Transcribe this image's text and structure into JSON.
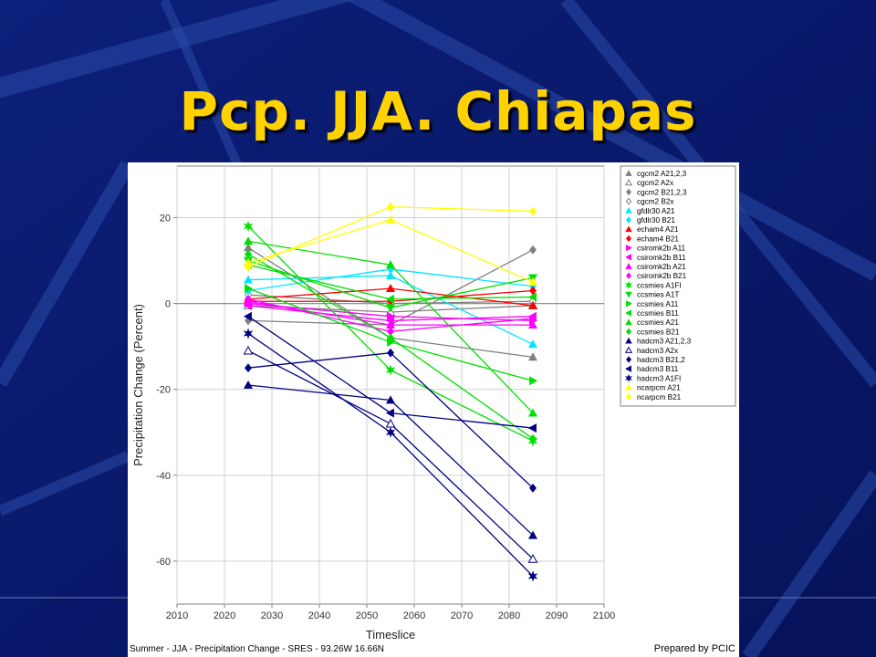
{
  "slide": {
    "title": "Pcp. JJA. Chiapas"
  },
  "figure": {
    "caption": "Summer - JJA - Precipitation Change - SRES - 93.26W 16.66N",
    "credit": "Prepared by PCIC"
  },
  "chart_data": {
    "type": "line",
    "xlabel": "Timeslice",
    "ylabel": "Precipitation Change (Percent)",
    "xlim": [
      2010,
      2100
    ],
    "ylim": [
      -70,
      32
    ],
    "xticks": [
      2010,
      2020,
      2030,
      2040,
      2050,
      2060,
      2070,
      2080,
      2090,
      2100
    ],
    "yticks": [
      20,
      0,
      -20,
      -40,
      -60
    ],
    "zero_line": true,
    "grid": true,
    "legend_position": "right",
    "x": [
      2025,
      2055,
      2085
    ],
    "series": [
      {
        "name": "cgcm2 A21,2,3",
        "color": "#808080",
        "marker": "triangle-up",
        "values": [
          13,
          -8,
          -12.5
        ]
      },
      {
        "name": "cgcm2 A2x",
        "color": "#808080",
        "marker": "triangle-up-open",
        "values": [
          -0.5,
          -2,
          -0.5
        ]
      },
      {
        "name": "cgcm2 B21,2,3",
        "color": "#808080",
        "marker": "diamond",
        "values": [
          -4,
          -5,
          12.5
        ]
      },
      {
        "name": "cgcm2 B2x",
        "color": "#808080",
        "marker": "diamond-open",
        "values": [
          2,
          0,
          0.5
        ]
      },
      {
        "name": "gfdlr30 A21",
        "color": "#00e5ff",
        "marker": "triangle-up",
        "values": [
          5.5,
          6.5,
          -9.5
        ]
      },
      {
        "name": "gfdlr30 B21",
        "color": "#00e5ff",
        "marker": "diamond",
        "values": [
          3,
          8,
          4
        ]
      },
      {
        "name": "echam4 A21",
        "color": "#ff0000",
        "marker": "triangle-up",
        "values": [
          1,
          3.5,
          -0.5
        ]
      },
      {
        "name": "echam4 B21",
        "color": "#ff0000",
        "marker": "diamond",
        "values": [
          0.5,
          0.5,
          3
        ]
      },
      {
        "name": "csiromk2b A11",
        "color": "#ff00ff",
        "marker": "triangle-right",
        "values": [
          0,
          -3,
          -4
        ]
      },
      {
        "name": "csiromk2b B11",
        "color": "#ff00ff",
        "marker": "triangle-left",
        "values": [
          -0.5,
          -4,
          -3
        ]
      },
      {
        "name": "csiromk2b A21",
        "color": "#ff00ff",
        "marker": "triangle-up",
        "values": [
          0.5,
          -5,
          -5
        ]
      },
      {
        "name": "csiromk2b B21",
        "color": "#ff00ff",
        "marker": "diamond",
        "values": [
          1,
          -6.5,
          -3.5
        ]
      },
      {
        "name": "ccsmies A1FI",
        "color": "#00e000",
        "marker": "star",
        "values": [
          18,
          -15.5,
          -32
        ]
      },
      {
        "name": "ccsmies A1T",
        "color": "#00e000",
        "marker": "triangle-down",
        "values": [
          10,
          -1,
          6
        ]
      },
      {
        "name": "ccsmies A11",
        "color": "#00e000",
        "marker": "triangle-right",
        "values": [
          3.5,
          -9,
          -18
        ]
      },
      {
        "name": "ccsmies B11",
        "color": "#00e000",
        "marker": "triangle-left",
        "values": [
          9,
          1,
          1.5
        ]
      },
      {
        "name": "ccsmies A21",
        "color": "#00e000",
        "marker": "triangle-up",
        "values": [
          14.5,
          9,
          -25.5
        ]
      },
      {
        "name": "ccsmies B21",
        "color": "#00e000",
        "marker": "diamond",
        "values": [
          11.5,
          -8,
          -31.5
        ]
      },
      {
        "name": "hadcm3 A21,2,3",
        "color": "#000080",
        "marker": "triangle-up",
        "values": [
          -19,
          -22.5,
          -54
        ]
      },
      {
        "name": "hadcm3 A2x",
        "color": "#000080",
        "marker": "triangle-up-open",
        "values": [
          -11,
          -28,
          -59.5
        ]
      },
      {
        "name": "hadcm3 B21,2",
        "color": "#000080",
        "marker": "diamond",
        "values": [
          -15,
          -11.5,
          -43
        ]
      },
      {
        "name": "hadcm3 B11",
        "color": "#000080",
        "marker": "triangle-left",
        "values": [
          -3,
          -25.5,
          -29
        ]
      },
      {
        "name": "hadcm3 A1FI",
        "color": "#000080",
        "marker": "star",
        "values": [
          -7,
          -30,
          -63.5
        ]
      },
      {
        "name": "ncarpcm A21",
        "color": "#ffff00",
        "marker": "triangle-up",
        "values": [
          9.5,
          19.5,
          5
        ]
      },
      {
        "name": "ncarpcm B21",
        "color": "#ffff00",
        "marker": "diamond",
        "values": [
          8.5,
          22.5,
          21.5
        ]
      }
    ]
  }
}
